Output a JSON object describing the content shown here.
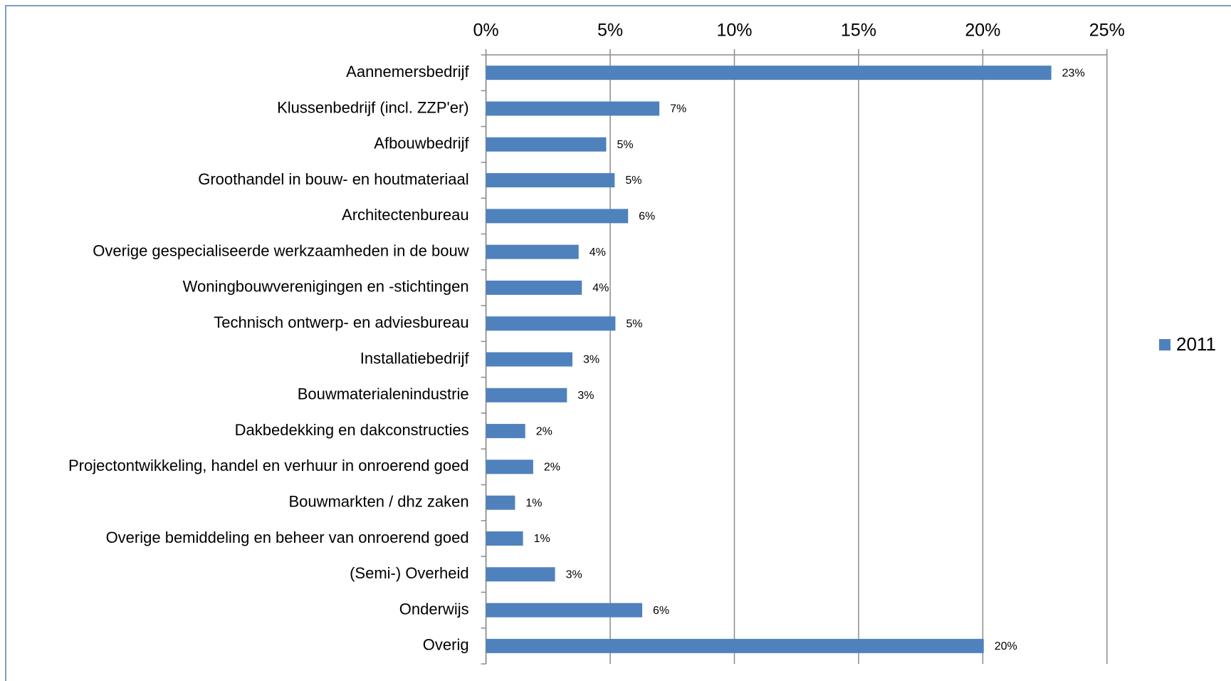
{
  "chart_data": {
    "type": "barh",
    "categories": [
      "Aannemersbedrijf",
      "Klussenbedrijf (incl. ZZP'er)",
      "Afbouwbedrijf",
      "Groothandel in bouw- en houtmateriaal",
      "Architectenbureau",
      "Overige gespecialiseerde werkzaamheden in de bouw",
      "Woningbouwverenigingen en -stichtingen",
      "Technisch ontwerp- en adviesbureau",
      "Installatiebedrijf",
      "Bouwmaterialenindustrie",
      "Dakbedekking en dakconstructies",
      "Projectontwikkeling, handel en verhuur in onroerend goed",
      "Bouwmarkten / dhz zaken",
      "Overige bemiddeling en beheer van onroerend goed",
      "(Semi-) Overheid",
      "Onderwijs",
      "Overig"
    ],
    "series": [
      {
        "name": "2011",
        "color": "#4f81bd",
        "values": [
          22.76,
          6.98,
          4.84,
          5.18,
          5.72,
          3.73,
          3.86,
          5.21,
          3.48,
          3.26,
          1.58,
          1.9,
          1.17,
          1.49,
          2.78,
          6.29,
          20.04
        ],
        "value_labels": [
          "23%",
          "7%",
          "5%",
          "5%",
          "6%",
          "4%",
          "4%",
          "5%",
          "3%",
          "3%",
          "2%",
          "2%",
          "1%",
          "1%",
          "3%",
          "6%",
          "20%"
        ]
      }
    ],
    "xlim": [
      0,
      25
    ],
    "xticks": [
      {
        "value": 0,
        "label": "0%"
      },
      {
        "value": 5,
        "label": "5%"
      },
      {
        "value": 10,
        "label": "10%"
      },
      {
        "value": 15,
        "label": "15%"
      },
      {
        "value": 20,
        "label": "20%"
      },
      {
        "value": 25,
        "label": "25%"
      }
    ],
    "grid": true,
    "legend": "right"
  }
}
